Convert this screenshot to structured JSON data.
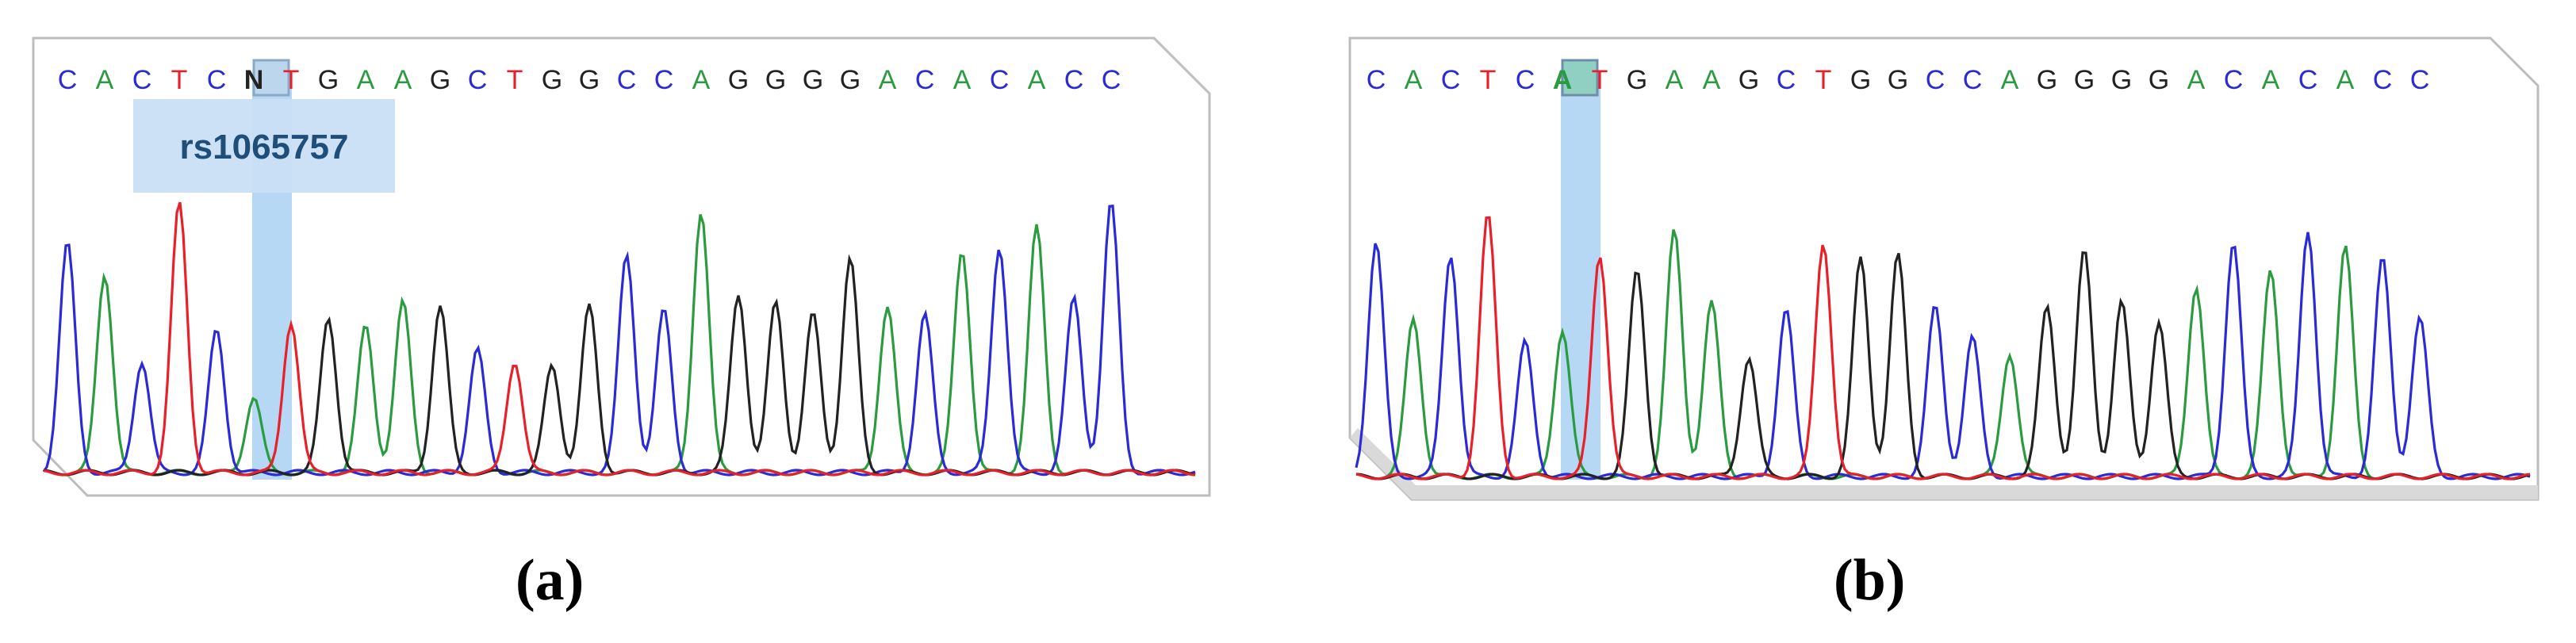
{
  "panels": [
    {
      "id": "a",
      "caption": "(a)",
      "label": "rs1065757",
      "sequence": [
        "C",
        "A",
        "C",
        "T",
        "C",
        "N",
        "T",
        "G",
        "A",
        "A",
        "G",
        "C",
        "T",
        "G",
        "G",
        "C",
        "C",
        "A",
        "G",
        "G",
        "G",
        "G",
        "A",
        "C",
        "A",
        "C",
        "A",
        "C",
        "C"
      ],
      "highlight_index": 5
    },
    {
      "id": "b",
      "caption": "(b)",
      "label": "",
      "sequence": [
        "C",
        "A",
        "C",
        "T",
        "C",
        "A",
        "T",
        "G",
        "A",
        "A",
        "G",
        "C",
        "T",
        "G",
        "G",
        "C",
        "C",
        "A",
        "G",
        "G",
        "G",
        "G",
        "A",
        "C",
        "A",
        "C",
        "A",
        "C",
        "C"
      ],
      "highlight_index": 5
    }
  ],
  "colors": {
    "A": "#2a9c3f",
    "C": "#2b2bd6",
    "G": "#222222",
    "T": "#e8202a",
    "N": "#222222",
    "highlight": "#a9d1f3",
    "label_bg": "#c9dff4",
    "label_text": "#1f4e79"
  }
}
